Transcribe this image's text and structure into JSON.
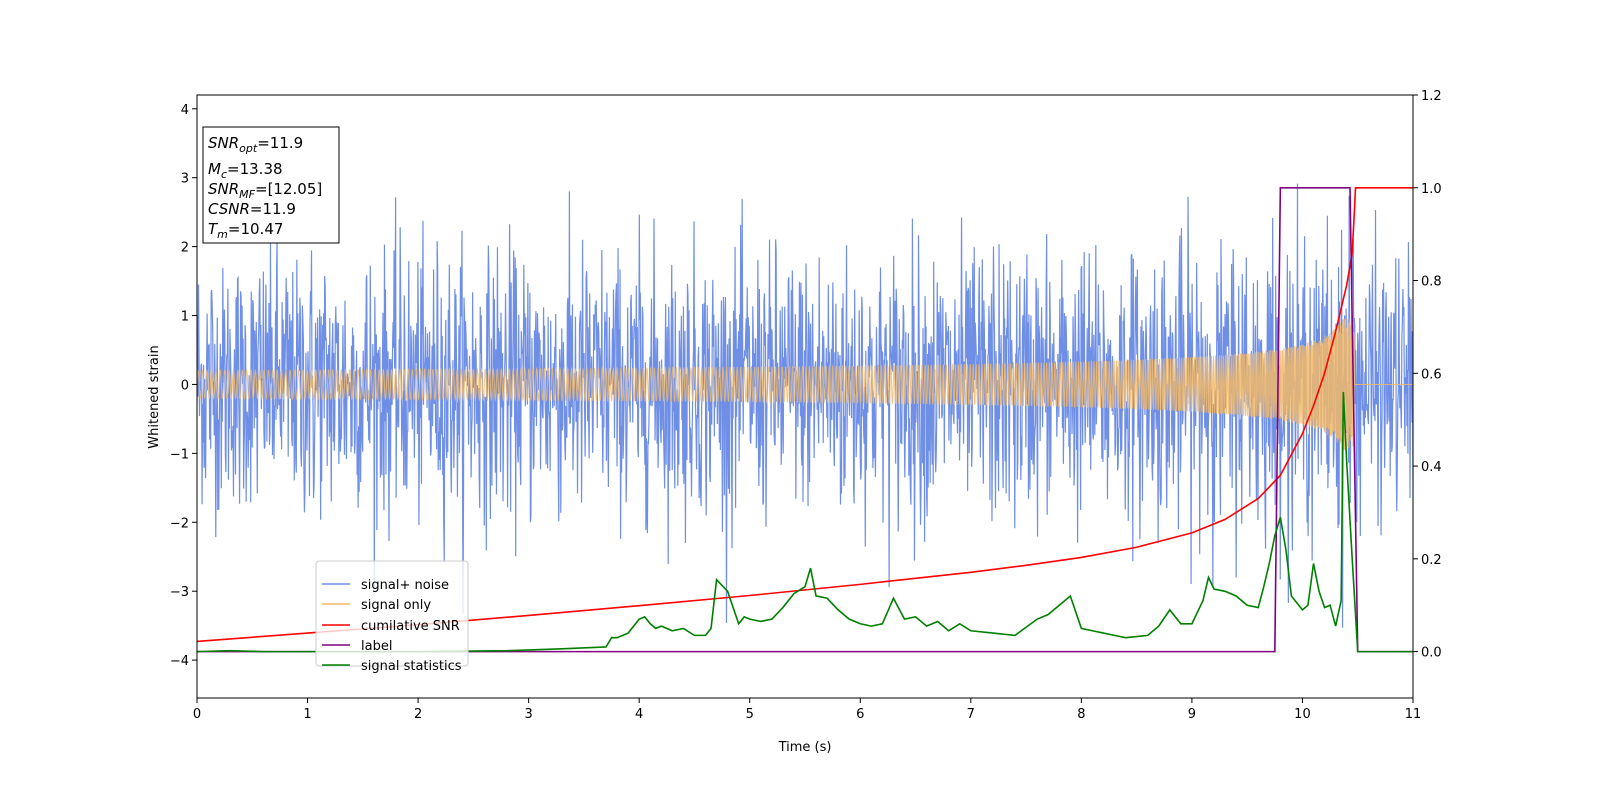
{
  "chart_data": {
    "type": "line",
    "title": "",
    "xlabel": "Time (s)",
    "ylabel": "Whitened strain",
    "xlim": [
      0,
      11
    ],
    "ylim_left": [
      -4.55,
      4.2
    ],
    "ylim_right": [
      -0.1,
      1.2
    ],
    "x_ticks": [
      "0",
      "1",
      "2",
      "3",
      "4",
      "5",
      "6",
      "7",
      "8",
      "9",
      "10",
      "11"
    ],
    "y_ticks_left": [
      "−4",
      "−3",
      "−2",
      "−1",
      "0",
      "1",
      "2",
      "3",
      "4"
    ],
    "y_ticks_right": [
      "0.0",
      "0.2",
      "0.4",
      "0.6",
      "0.8",
      "1.0",
      "1.2"
    ],
    "legend_position": "lower-left",
    "info_box": {
      "snr_opt_label": "SNR",
      "snr_opt_sub": "opt",
      "snr_opt_value": "=11.9",
      "mc_label": "M",
      "mc_sub": "c",
      "mc_value": "=13.38",
      "snr_mf_label": "SNR",
      "snr_mf_sub": "MF",
      "snr_mf_value": "=[12.05]",
      "csnr_label": "CSNR",
      "csnr_value": "=11.9",
      "tm_label": "T",
      "tm_sub": "m",
      "tm_value": "=10.47"
    },
    "series": [
      {
        "name": "signal+ noise",
        "axis": "left",
        "color": "#6f8fe6",
        "description_type": "noise",
        "std": 1.0,
        "duration": 11,
        "samples": 2400
      },
      {
        "name": "signal only",
        "axis": "left",
        "color": "#f2b968",
        "description_type": "chirp",
        "merger_time": 10.47,
        "final_amplitude": 0.95
      },
      {
        "name": "cumilative SNR",
        "axis": "right",
        "color": "#ff0000",
        "x": [
          0,
          1,
          2,
          3,
          4,
          5,
          6,
          7,
          7.5,
          8,
          8.5,
          9,
          9.3,
          9.6,
          9.8,
          10,
          10.1,
          10.2,
          10.3,
          10.4,
          10.45,
          10.47,
          10.48,
          11
        ],
        "y": [
          0.022,
          0.04,
          0.058,
          0.078,
          0.099,
          0.121,
          0.145,
          0.171,
          0.186,
          0.203,
          0.225,
          0.256,
          0.285,
          0.33,
          0.38,
          0.47,
          0.53,
          0.6,
          0.69,
          0.79,
          0.86,
          0.95,
          1.0,
          1.0
        ]
      },
      {
        "name": "label",
        "axis": "right",
        "color": "#800080",
        "x": [
          0,
          9.75,
          9.8,
          10.43,
          10.5,
          11
        ],
        "y": [
          0,
          0,
          1,
          1,
          0,
          0
        ]
      },
      {
        "name": "signal statistics",
        "axis": "right",
        "color": "#008000",
        "x": [
          0,
          0.3,
          0.6,
          1,
          2,
          2.8,
          3.3,
          3.7,
          3.75,
          3.8,
          3.9,
          4.0,
          4.05,
          4.1,
          4.15,
          4.2,
          4.3,
          4.4,
          4.5,
          4.6,
          4.65,
          4.7,
          4.8,
          4.9,
          4.95,
          5.0,
          5.1,
          5.2,
          5.3,
          5.4,
          5.5,
          5.55,
          5.6,
          5.7,
          5.8,
          5.9,
          6.0,
          6.1,
          6.2,
          6.3,
          6.4,
          6.5,
          6.6,
          6.7,
          6.8,
          6.9,
          7.0,
          7.2,
          7.4,
          7.6,
          7.7,
          7.8,
          7.9,
          8.0,
          8.1,
          8.2,
          8.3,
          8.4,
          8.6,
          8.7,
          8.8,
          8.9,
          9.0,
          9.1,
          9.15,
          9.2,
          9.3,
          9.4,
          9.5,
          9.6,
          9.65,
          9.7,
          9.75,
          9.8,
          9.85,
          9.9,
          10.0,
          10.05,
          10.1,
          10.15,
          10.2,
          10.25,
          10.3,
          10.35,
          10.37,
          10.4,
          10.45,
          10.5,
          11
        ],
        "y": [
          0,
          0.002,
          0.0,
          0.0,
          0.0,
          0.002,
          0.006,
          0.01,
          0.03,
          0.03,
          0.04,
          0.07,
          0.075,
          0.06,
          0.05,
          0.055,
          0.045,
          0.05,
          0.035,
          0.035,
          0.05,
          0.155,
          0.13,
          0.06,
          0.075,
          0.07,
          0.065,
          0.07,
          0.095,
          0.125,
          0.14,
          0.18,
          0.12,
          0.115,
          0.09,
          0.07,
          0.06,
          0.055,
          0.06,
          0.115,
          0.07,
          0.075,
          0.055,
          0.065,
          0.045,
          0.06,
          0.045,
          0.04,
          0.035,
          0.07,
          0.08,
          0.1,
          0.12,
          0.05,
          0.045,
          0.04,
          0.035,
          0.03,
          0.035,
          0.055,
          0.09,
          0.06,
          0.06,
          0.11,
          0.16,
          0.135,
          0.13,
          0.12,
          0.1,
          0.095,
          0.14,
          0.19,
          0.25,
          0.29,
          0.22,
          0.12,
          0.09,
          0.1,
          0.19,
          0.13,
          0.095,
          0.1,
          0.055,
          0.11,
          0.56,
          0.41,
          0.2,
          0.0,
          0.0
        ]
      }
    ]
  }
}
